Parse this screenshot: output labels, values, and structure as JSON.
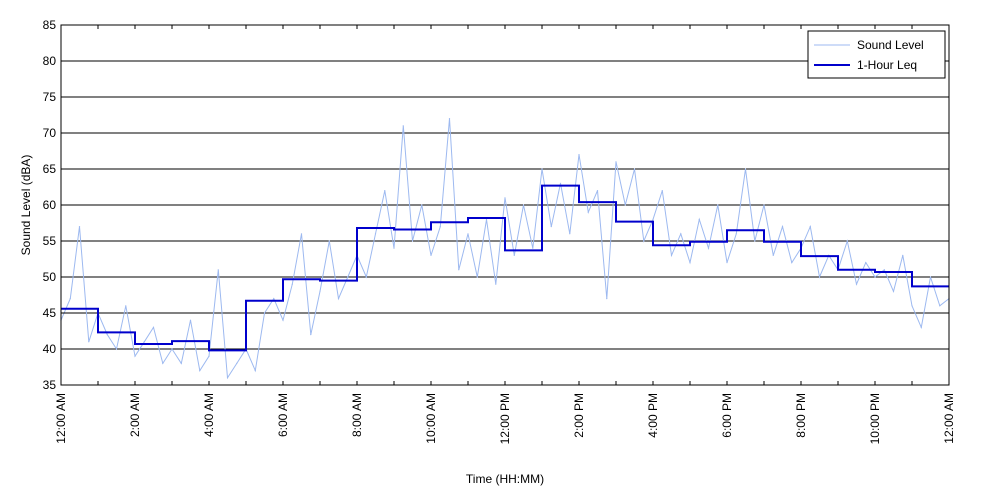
{
  "chart_data": {
    "type": "line",
    "title": "",
    "xlabel": "Time (HH:MM)",
    "ylabel": "Sound Level (dBA)",
    "ylim": [
      35,
      85
    ],
    "xlim_hours": [
      0,
      24
    ],
    "y_ticks": [
      35,
      40,
      45,
      50,
      55,
      60,
      65,
      70,
      75,
      80,
      85
    ],
    "x_tick_labels": [
      "12:00 AM",
      "2:00 AM",
      "4:00 AM",
      "6:00 AM",
      "8:00 AM",
      "10:00 AM",
      "12:00 PM",
      "2:00 PM",
      "4:00 PM",
      "6:00 PM",
      "8:00 PM",
      "10:00 PM",
      "12:00 AM"
    ],
    "grid": "horizontal",
    "legend_position": "top-right",
    "series": [
      {
        "name": "Sound Level",
        "style": "line",
        "color": "#9db9f0",
        "x_hours": [
          0.0,
          0.25,
          0.5,
          0.75,
          1.0,
          1.25,
          1.5,
          1.75,
          2.0,
          2.25,
          2.5,
          2.75,
          3.0,
          3.25,
          3.5,
          3.75,
          4.0,
          4.25,
          4.5,
          4.75,
          5.0,
          5.25,
          5.5,
          5.75,
          6.0,
          6.25,
          6.5,
          6.75,
          7.0,
          7.25,
          7.5,
          7.75,
          8.0,
          8.25,
          8.5,
          8.75,
          9.0,
          9.25,
          9.5,
          9.75,
          10.0,
          10.25,
          10.5,
          10.75,
          11.0,
          11.25,
          11.5,
          11.75,
          12.0,
          12.25,
          12.5,
          12.75,
          13.0,
          13.25,
          13.5,
          13.75,
          14.0,
          14.25,
          14.5,
          14.75,
          15.0,
          15.25,
          15.5,
          15.75,
          16.0,
          16.25,
          16.5,
          16.75,
          17.0,
          17.25,
          17.5,
          17.75,
          18.0,
          18.25,
          18.5,
          18.75,
          19.0,
          19.25,
          19.5,
          19.75,
          20.0,
          20.25,
          20.5,
          20.75,
          21.0,
          21.25,
          21.5,
          21.75,
          22.0,
          22.25,
          22.5,
          22.75,
          23.0,
          23.25,
          23.5,
          23.75,
          24.0
        ],
        "values": [
          44,
          47,
          57,
          41,
          45,
          42,
          40,
          46,
          39,
          41,
          43,
          38,
          40,
          38,
          44,
          37,
          39,
          51,
          36,
          38,
          40,
          37,
          45,
          47,
          44,
          49,
          56,
          42,
          48,
          55,
          47,
          50,
          53,
          50,
          56,
          62,
          54,
          71,
          55,
          60,
          53,
          57,
          72,
          51,
          56,
          50,
          58,
          49,
          61,
          53,
          60,
          54,
          65,
          57,
          63,
          56,
          67,
          59,
          62,
          47,
          66,
          60,
          65,
          55,
          58,
          62,
          53,
          56,
          52,
          58,
          54,
          60,
          52,
          56,
          65,
          55,
          60,
          53,
          57,
          52,
          54,
          57,
          50,
          53,
          51,
          55,
          49,
          52,
          50,
          51,
          48,
          53,
          46,
          43,
          50,
          46,
          47
        ]
      },
      {
        "name": "1-Hour Leq",
        "style": "step",
        "color": "#0000cc",
        "x_hours": [
          0,
          1,
          2,
          3,
          4,
          5,
          6,
          7,
          8,
          9,
          10,
          11,
          12,
          13,
          14,
          15,
          16,
          17,
          18,
          19,
          20,
          21,
          22,
          23
        ],
        "values": [
          45.6,
          42.3,
          40.7,
          41.1,
          39.8,
          46.7,
          49.7,
          49.5,
          56.8,
          56.6,
          57.6,
          58.2,
          53.7,
          62.7,
          60.4,
          57.7,
          54.4,
          54.9,
          56.5,
          54.9,
          52.9,
          51.0,
          50.7,
          48.7
        ]
      }
    ]
  }
}
